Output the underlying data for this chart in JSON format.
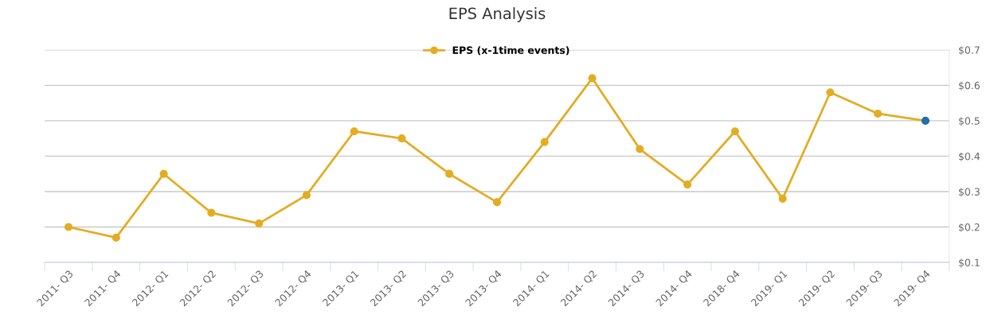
{
  "chart_data": {
    "type": "line",
    "title": "EPS Analysis",
    "categories": [
      "2011- Q3",
      "2011- Q4",
      "2012- Q1",
      "2012- Q2",
      "2012- Q3",
      "2012- Q4",
      "2013- Q1",
      "2013- Q2",
      "2013- Q3",
      "2013- Q4",
      "2014- Q1",
      "2014- Q2",
      "2014- Q3",
      "2014- Q4",
      "2018- Q4",
      "2019- Q1",
      "2019- Q2",
      "2019- Q3",
      "2019- Q4"
    ],
    "series": [
      {
        "name": "EPS (x-1time events)",
        "color": "#e3ad23",
        "colors": [
          "#e3ad23",
          "#e3ad23",
          "#e3ad23",
          "#e3ad23",
          "#e3ad23",
          "#e3ad23",
          "#e3ad23",
          "#e3ad23",
          "#e3ad23",
          "#e3ad23",
          "#e3ad23",
          "#e3ad23",
          "#e3ad23",
          "#e3ad23",
          "#e3ad23",
          "#e3ad23",
          "#e3ad23",
          "#e3ad23",
          "#1f6fb0"
        ],
        "values": [
          0.2,
          0.17,
          0.35,
          0.24,
          0.21,
          0.29,
          0.47,
          0.45,
          0.35,
          0.27,
          0.44,
          0.62,
          0.42,
          0.32,
          0.47,
          0.28,
          0.58,
          0.52,
          0.5
        ]
      }
    ],
    "ylim": [
      0.1,
      0.7
    ],
    "yticks": [
      {
        "value": 0.1,
        "label": "$0.1"
      },
      {
        "value": 0.2,
        "label": "$0.2"
      },
      {
        "value": 0.3,
        "label": "$0.3"
      },
      {
        "value": 0.4,
        "label": "$0.4"
      },
      {
        "value": 0.5,
        "label": "$0.5"
      },
      {
        "value": 0.6,
        "label": "$0.6"
      },
      {
        "value": 0.7,
        "label": "$0.7"
      }
    ],
    "grid": "y",
    "legend": "top",
    "marker": "circle",
    "line_style": "solid"
  }
}
